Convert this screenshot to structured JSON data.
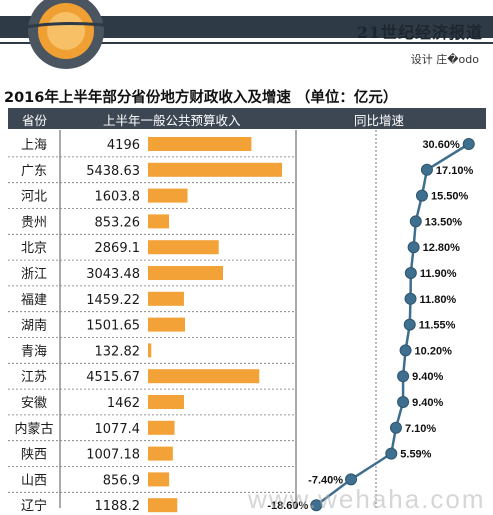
{
  "header": {
    "publication": "21世纪经济报道",
    "credit": "设计 庄�odo"
  },
  "chart_data": {
    "type": "bar",
    "title": "2016年上半年部分省份地方财政收入及增速 （单位：亿元）",
    "columns": [
      "省份",
      "上半年一般公共预算收入",
      "同比增速"
    ],
    "categories": [
      "上海",
      "广东",
      "河北",
      "贵州",
      "北京",
      "浙江",
      "福建",
      "湖南",
      "青海",
      "江苏",
      "安徽",
      "内蒙古",
      "陕西",
      "山西",
      "辽宁"
    ],
    "series": [
      {
        "name": "上半年一般公共预算收入",
        "values": [
          4196,
          5438.63,
          1603.8,
          853.26,
          2869.1,
          3043.48,
          1459.22,
          1501.65,
          132.82,
          4515.67,
          1462,
          1077.4,
          1007.18,
          856.9,
          1188.2
        ],
        "labels": [
          "4196",
          "5438.63",
          "1603.8",
          "853.26",
          "2869.1",
          "3043.48",
          "1459.22",
          "1501.65",
          "132.82",
          "4515.67",
          "1462",
          "1077.4",
          "1007.18",
          "856.9",
          "1188.2"
        ]
      },
      {
        "name": "同比增速",
        "type": "line",
        "values": [
          30.6,
          17.1,
          15.5,
          13.5,
          12.8,
          11.9,
          11.8,
          11.55,
          10.2,
          9.4,
          9.4,
          7.1,
          5.59,
          -7.4,
          -18.6
        ],
        "labels": [
          "30.60%",
          "17.10%",
          "15.50%",
          "13.50%",
          "12.80%",
          "11.90%",
          "11.80%",
          "11.55%",
          "10.20%",
          "9.40%",
          "9.40%",
          "7.10%",
          "5.59%",
          "-7.40%",
          "-18.60%"
        ]
      }
    ],
    "colors": {
      "bar": "#f2a236",
      "line": "#3f6f8e",
      "header_bg": "#3c4753",
      "accent": "#f5a33a"
    }
  },
  "watermark": "www.wehaha.com"
}
